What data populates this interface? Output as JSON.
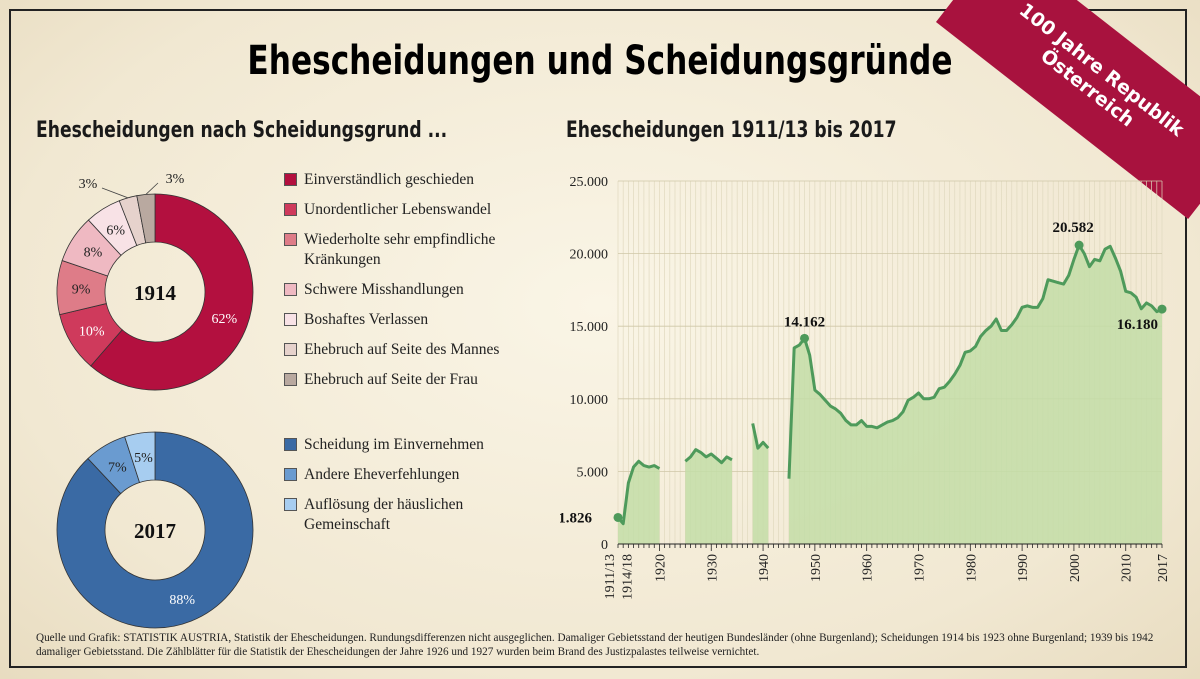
{
  "title": "Ehescheidungen und Scheidungsgründe",
  "banner": {
    "line1": "100 Jahre Republik",
    "line2": "Österreich",
    "color": "#a8123e"
  },
  "left_title": "Ehescheidungen nach Scheidungsgrund ...",
  "right_title": "Ehescheidungen 1911/13 bis 2017",
  "footnote": "Quelle und Grafik: STATISTIK AUSTRIA, Statistik der Ehescheidungen. Rundungsdifferenzen nicht ausgeglichen. Damaliger Gebietsstand der heutigen Bundesländer (ohne Burgenland); Scheidungen 1914 bis 1923 ohne Burgenland; 1939 bis 1942 damaliger Gebietsstand. Die Zählblätter für die Statistik der Ehescheidungen der Jahre 1926 und 1927 wurden beim Brand des Justizpalastes teilweise vernichtet.",
  "chart_data": [
    {
      "type": "pie",
      "center_label": "1914",
      "slices": [
        {
          "label": "Einverständlich geschieden",
          "value": 62,
          "display": "62%",
          "color": "#b3103f"
        },
        {
          "label": "Unordentlicher Lebenswandel",
          "value": 10,
          "display": "10%",
          "color": "#cf3a5c"
        },
        {
          "label": "Wiederholte sehr empfindliche Kränkungen",
          "value": 9,
          "display": "9%",
          "color": "#de7c88"
        },
        {
          "label": "Schwere Misshandlungen",
          "value": 8,
          "display": "8%",
          "color": "#efb9c2"
        },
        {
          "label": "Boshaftes Verlassen",
          "value": 6,
          "display": "6%",
          "color": "#f8e2e6"
        },
        {
          "label": "Ehebruch auf Seite des Mannes",
          "value": 3,
          "display": "3%",
          "color": "#e6d2cc"
        },
        {
          "label": "Ehebruch auf Seite der Frau",
          "value": 3,
          "display": "3%",
          "color": "#b9a9a0"
        }
      ]
    },
    {
      "type": "pie",
      "center_label": "2017",
      "slices": [
        {
          "label": "Scheidung im Einvernehmen",
          "value": 88,
          "display": "88%",
          "color": "#3a6aa4"
        },
        {
          "label": "Andere Eheverfehlungen",
          "value": 7,
          "display": "7%",
          "color": "#6a9bd0"
        },
        {
          "label": "Auflösung der häuslichen Gemeinschaft",
          "value": 5,
          "display": "5%",
          "color": "#a7cdf0"
        }
      ]
    },
    {
      "type": "area",
      "title": "Ehescheidungen 1911/13 bis 2017",
      "ylim": [
        0,
        25000
      ],
      "yticks": [
        0,
        5000,
        10000,
        15000,
        20000,
        25000
      ],
      "ytick_labels": [
        "0",
        "5.000",
        "10.000",
        "15.000",
        "20.000",
        "25.000"
      ],
      "xtick_labels": [
        "1911/13",
        "1914/18",
        "1920",
        "1930",
        "1940",
        "1950",
        "1960",
        "1970",
        "1980",
        "1990",
        "2000",
        "2010",
        "2017"
      ],
      "line_color": "#4e9a5b",
      "fill_color": "#c3dda7",
      "grid": true,
      "segments": [
        [
          [
            1912,
            1826
          ],
          [
            1913,
            1400
          ],
          [
            1914,
            4200
          ],
          [
            1915,
            5300
          ],
          [
            1916,
            5700
          ],
          [
            1917,
            5400
          ],
          [
            1918,
            5300
          ],
          [
            1919,
            5400
          ],
          [
            1920,
            5200
          ]
        ],
        [
          [
            1925,
            5700
          ],
          [
            1926,
            6000
          ],
          [
            1927,
            6500
          ],
          [
            1928,
            6300
          ],
          [
            1929,
            6000
          ],
          [
            1930,
            6200
          ],
          [
            1931,
            5900
          ],
          [
            1932,
            5600
          ],
          [
            1933,
            6000
          ],
          [
            1934,
            5800
          ]
        ],
        [
          [
            1938,
            8300
          ],
          [
            1939,
            6600
          ],
          [
            1940,
            7000
          ],
          [
            1941,
            6600
          ]
        ],
        [
          [
            1945,
            4500
          ],
          [
            1946,
            13500
          ],
          [
            1947,
            13700
          ],
          [
            1948,
            14162
          ],
          [
            1949,
            13000
          ],
          [
            1950,
            10600
          ],
          [
            1951,
            10300
          ],
          [
            1952,
            9900
          ],
          [
            1953,
            9500
          ],
          [
            1954,
            9300
          ],
          [
            1955,
            9000
          ],
          [
            1956,
            8500
          ],
          [
            1957,
            8200
          ],
          [
            1958,
            8200
          ],
          [
            1959,
            8500
          ],
          [
            1960,
            8100
          ],
          [
            1961,
            8100
          ],
          [
            1962,
            8000
          ],
          [
            1963,
            8200
          ],
          [
            1964,
            8400
          ],
          [
            1965,
            8500
          ],
          [
            1966,
            8700
          ],
          [
            1967,
            9100
          ],
          [
            1968,
            9900
          ],
          [
            1969,
            10100
          ],
          [
            1970,
            10400
          ],
          [
            1971,
            10000
          ],
          [
            1972,
            10000
          ],
          [
            1973,
            10100
          ],
          [
            1974,
            10700
          ],
          [
            1975,
            10800
          ],
          [
            1976,
            11200
          ],
          [
            1977,
            11700
          ],
          [
            1978,
            12300
          ],
          [
            1979,
            13200
          ],
          [
            1980,
            13300
          ],
          [
            1981,
            13600
          ],
          [
            1982,
            14300
          ],
          [
            1983,
            14700
          ],
          [
            1984,
            15000
          ],
          [
            1985,
            15500
          ],
          [
            1986,
            14700
          ],
          [
            1987,
            14700
          ],
          [
            1988,
            15100
          ],
          [
            1989,
            15600
          ],
          [
            1990,
            16300
          ],
          [
            1991,
            16400
          ],
          [
            1992,
            16300
          ],
          [
            1993,
            16300
          ],
          [
            1994,
            16900
          ],
          [
            1995,
            18200
          ],
          [
            1996,
            18100
          ],
          [
            1997,
            18000
          ],
          [
            1998,
            17900
          ],
          [
            1999,
            18500
          ],
          [
            2000,
            19600
          ],
          [
            2001,
            20582
          ],
          [
            2002,
            20000
          ],
          [
            2003,
            19100
          ],
          [
            2004,
            19600
          ],
          [
            2005,
            19500
          ],
          [
            2006,
            20300
          ],
          [
            2007,
            20500
          ],
          [
            2008,
            19700
          ],
          [
            2009,
            18800
          ],
          [
            2010,
            17400
          ],
          [
            2011,
            17300
          ],
          [
            2012,
            17000
          ],
          [
            2013,
            16200
          ],
          [
            2014,
            16600
          ],
          [
            2015,
            16400
          ],
          [
            2016,
            16000
          ],
          [
            2017,
            16180
          ]
        ]
      ],
      "annotations": [
        {
          "x": 1912,
          "y": 1826,
          "label": "1.826"
        },
        {
          "x": 1948,
          "y": 14162,
          "label": "14.162"
        },
        {
          "x": 2001,
          "y": 20582,
          "label": "20.582"
        },
        {
          "x": 2017,
          "y": 16180,
          "label": "16.180"
        }
      ]
    }
  ]
}
